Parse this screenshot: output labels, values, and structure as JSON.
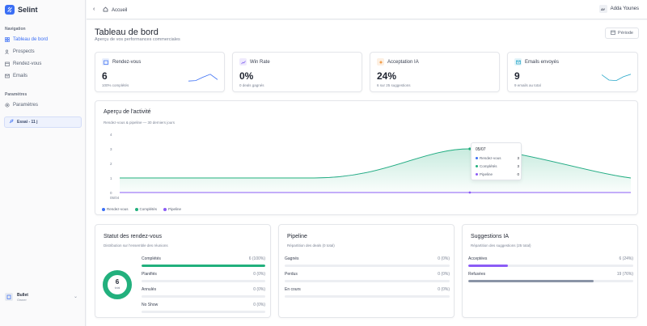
{
  "app": {
    "name": "Selint"
  },
  "sidebar": {
    "section_nav": "Navigation",
    "items": [
      {
        "label": "Tableau de bord",
        "icon": "grid-icon",
        "active": true
      },
      {
        "label": "Prospects",
        "icon": "users-icon"
      },
      {
        "label": "Rendez-vous",
        "icon": "calendar-icon"
      },
      {
        "label": "Emails",
        "icon": "mail-icon"
      }
    ],
    "section_params": "Paramètres",
    "settings_label": "Paramètres",
    "trial_label": "Essai - 11 j",
    "user": {
      "name": "Bullet",
      "role": "Owner"
    }
  },
  "topbar": {
    "breadcrumb": "Accueil",
    "user_initials": "AY",
    "user_name": "Adda Younes"
  },
  "page": {
    "title": "Tableau de bord",
    "subtitle": "Aperçu de vos performances commerciales",
    "period_label": "Période"
  },
  "stats": [
    {
      "label": "Rendez-vous",
      "value": "6",
      "note": "100% complétés",
      "icon": "calendar-icon",
      "color": "#3b6ff5",
      "bg": "#e8eefc",
      "trend": [
        0.15,
        0.2,
        0.55,
        0.85,
        0.3
      ]
    },
    {
      "label": "Win Rate",
      "value": "0%",
      "note": "0 deals gagnés",
      "icon": "trend-up-icon",
      "color": "#7c5cf0",
      "bg": "#efeafd",
      "trend": []
    },
    {
      "label": "Acceptation IA",
      "value": "24%",
      "note": "6 sur 25 suggestions",
      "icon": "sparkle-icon",
      "color": "#f08a24",
      "bg": "#fdf0e3",
      "trend": []
    },
    {
      "label": "Emails envoyés",
      "value": "9",
      "note": "9 emails au total",
      "icon": "mail-icon",
      "color": "#28a7c9",
      "bg": "#e3f4f9",
      "trend": [
        0.8,
        0.25,
        0.2,
        0.6,
        0.85
      ]
    }
  ],
  "activity": {
    "title": "Aperçu de l'activité",
    "subtitle": "Rendez-vous & pipeline — 30 derniers jours",
    "legend": [
      {
        "label": "Rendez-vous",
        "color": "#3b6ff5"
      },
      {
        "label": "Complétés",
        "color": "#22b07d"
      },
      {
        "label": "Pipeline",
        "color": "#8b5cf6"
      }
    ],
    "tooltip": {
      "date": "05/07",
      "rows": [
        {
          "label": "Rendez-vous",
          "value": "3",
          "color": "#3b6ff5"
        },
        {
          "label": "Complétés",
          "value": "3",
          "color": "#22b07d"
        },
        {
          "label": "Pipeline",
          "value": "0",
          "color": "#8b5cf6"
        }
      ]
    }
  },
  "chart_data": {
    "type": "area",
    "x": [
      "05/04",
      "05/07",
      "05/10"
    ],
    "series": [
      {
        "name": "Rendez-vous",
        "values": [
          1,
          3,
          1
        ]
      },
      {
        "name": "Complétés",
        "values": [
          1,
          3,
          1
        ]
      },
      {
        "name": "Pipeline",
        "values": [
          0,
          0,
          0
        ]
      }
    ],
    "yticks": [
      "0",
      "1",
      "2",
      "3",
      "4"
    ],
    "xtick_labels": [
      "05/04"
    ],
    "ylim": [
      0,
      4
    ]
  },
  "bottom": {
    "status": {
      "title": "Statut des rendez-vous",
      "subtitle": "Distribution sur l'ensemble des réunions",
      "donut_value": "6",
      "donut_label": "total",
      "rows": [
        {
          "label": "Complétés",
          "pct": "6 (100%)",
          "fraction": 1.0,
          "color": "#22b07d"
        },
        {
          "label": "Planifiés",
          "pct": "0 (0%)",
          "fraction": 0,
          "color": "#3b6ff5"
        },
        {
          "label": "Annulés",
          "pct": "0 (0%)",
          "fraction": 0,
          "color": "#e35d5d"
        },
        {
          "label": "No Show",
          "pct": "0 (0%)",
          "fraction": 0,
          "color": "#f0a024"
        }
      ]
    },
    "pipeline": {
      "title": "Pipeline",
      "subtitle": "Répartition des deals (0 total)",
      "rows": [
        {
          "label": "Gagnés",
          "pct": "0 (0%)",
          "fraction": 0,
          "color": "#22b07d"
        },
        {
          "label": "Perdus",
          "pct": "0 (0%)",
          "fraction": 0,
          "color": "#e35d5d"
        },
        {
          "label": "En cours",
          "pct": "0 (0%)",
          "fraction": 0,
          "color": "#3b6ff5"
        }
      ]
    },
    "suggestions": {
      "title": "Suggestions IA",
      "subtitle": "Répartition des suggestions (25 total)",
      "rows": [
        {
          "label": "Acceptées",
          "pct": "6 (24%)",
          "fraction": 0.24,
          "color": "#8b5cf6"
        },
        {
          "label": "Refusées",
          "pct": "19 (76%)",
          "fraction": 0.76,
          "color": "#8a94a6"
        }
      ]
    }
  }
}
